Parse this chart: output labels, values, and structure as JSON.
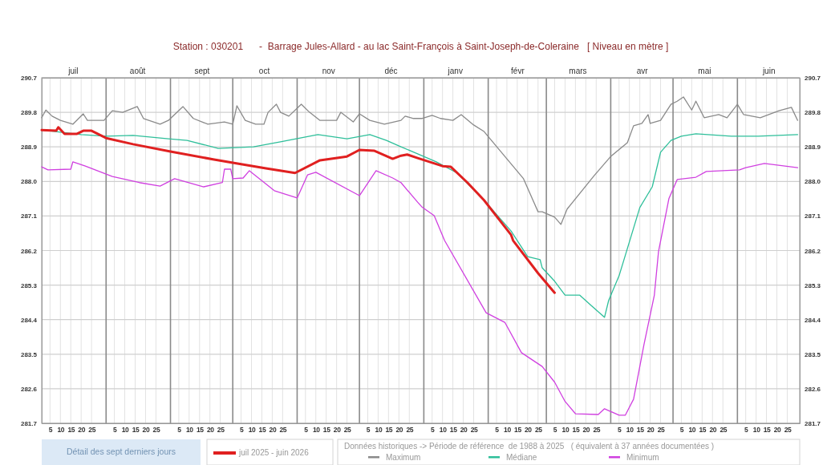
{
  "chart_data": {
    "type": "line",
    "title": "Station : 030201      -  Barrage Jules-Allard - au lac Saint-François à Saint-Joseph-de-Coleraine   [ Niveau en mètre ]",
    "legend_title": "Données historiques -> Période de référence  de 1988 à 2025   ( équivalent à 37 années documentées )",
    "legend": "bottom",
    "grid": true,
    "annotations": [
      "Détail des sept derniers jours"
    ],
    "xlim": [
      "2025-07-01",
      "2026-07-01"
    ],
    "ylim": [
      281.7,
      290.7
    ],
    "y2lim": [
      281.7,
      290.7
    ],
    "x2lim": [
      "2025-07-01",
      "2026-07-01"
    ],
    "yticks": [
      281.7,
      282.6,
      283.5,
      284.4,
      285.3,
      286.2,
      287.1,
      {
        "value": 288,
        "label": "288.0"
      },
      288.9,
      289.8,
      290.7
    ],
    "y2ticks": [
      281.7,
      282.6,
      283.5,
      284.4,
      285.3,
      286.2,
      287.1,
      {
        "value": 288,
        "label": "288.0"
      },
      288.9,
      289.8,
      290.7
    ],
    "xticks": [
      {
        "value": "2025-07-05",
        "label": "5"
      },
      {
        "value": "2025-07-10",
        "label": "10"
      },
      {
        "value": "2025-07-15",
        "label": "15"
      },
      {
        "value": "2025-07-20",
        "label": "20"
      },
      {
        "value": "2025-07-25",
        "label": "25"
      },
      {
        "value": "2025-08-05",
        "label": "5"
      },
      {
        "value": "2025-08-10",
        "label": "10"
      },
      {
        "value": "2025-08-15",
        "label": "15"
      },
      {
        "value": "2025-08-20",
        "label": "20"
      },
      {
        "value": "2025-08-25",
        "label": "25"
      },
      {
        "value": "2025-09-05",
        "label": "5"
      },
      {
        "value": "2025-09-10",
        "label": "10"
      },
      {
        "value": "2025-09-15",
        "label": "15"
      },
      {
        "value": "2025-09-20",
        "label": "20"
      },
      {
        "value": "2025-09-25",
        "label": "25"
      },
      {
        "value": "2025-10-05",
        "label": "5"
      },
      {
        "value": "2025-10-10",
        "label": "10"
      },
      {
        "value": "2025-10-15",
        "label": "15"
      },
      {
        "value": "2025-10-20",
        "label": "20"
      },
      {
        "value": "2025-10-25",
        "label": "25"
      },
      {
        "value": "2025-11-05",
        "label": "5"
      },
      {
        "value": "2025-11-10",
        "label": "10"
      },
      {
        "value": "2025-11-15",
        "label": "15"
      },
      {
        "value": "2025-11-20",
        "label": "20"
      },
      {
        "value": "2025-11-25",
        "label": "25"
      },
      {
        "value": "2025-12-05",
        "label": "5"
      },
      {
        "value": "2025-12-10",
        "label": "10"
      },
      {
        "value": "2025-12-15",
        "label": "15"
      },
      {
        "value": "2025-12-20",
        "label": "20"
      },
      {
        "value": "2025-12-25",
        "label": "25"
      },
      {
        "value": "2026-01-05",
        "label": "5"
      },
      {
        "value": "2026-01-10",
        "label": "10"
      },
      {
        "value": "2026-01-15",
        "label": "15"
      },
      {
        "value": "2026-01-20",
        "label": "20"
      },
      {
        "value": "2026-01-25",
        "label": "25"
      },
      {
        "value": "2026-02-05",
        "label": "5"
      },
      {
        "value": "2026-02-10",
        "label": "10"
      },
      {
        "value": "2026-02-15",
        "label": "15"
      },
      {
        "value": "2026-02-20",
        "label": "20"
      },
      {
        "value": "2026-02-25",
        "label": "25"
      },
      {
        "value": "2026-03-05",
        "label": "5"
      },
      {
        "value": "2026-03-10",
        "label": "10"
      },
      {
        "value": "2026-03-15",
        "label": "15"
      },
      {
        "value": "2026-03-20",
        "label": "20"
      },
      {
        "value": "2026-03-25",
        "label": "25"
      },
      {
        "value": "2026-04-05",
        "label": "5"
      },
      {
        "value": "2026-04-10",
        "label": "10"
      },
      {
        "value": "2026-04-15",
        "label": "15"
      },
      {
        "value": "2026-04-20",
        "label": "20"
      },
      {
        "value": "2026-04-25",
        "label": "25"
      },
      {
        "value": "2026-05-05",
        "label": "5"
      },
      {
        "value": "2026-05-10",
        "label": "10"
      },
      {
        "value": "2026-05-15",
        "label": "15"
      },
      {
        "value": "2026-05-20",
        "label": "20"
      },
      {
        "value": "2026-05-25",
        "label": "25"
      },
      {
        "value": "2026-06-05",
        "label": "5"
      },
      {
        "value": "2026-06-10",
        "label": "10"
      },
      {
        "value": "2026-06-15",
        "label": "15"
      },
      {
        "value": "2026-06-20",
        "label": "20"
      },
      {
        "value": "2026-06-25",
        "label": "25"
      }
    ],
    "x2ticks": [
      {
        "value": "2025-07-16",
        "label": "juil"
      },
      {
        "value": "2025-08-16",
        "label": "août"
      },
      {
        "value": "2025-09-16",
        "label": "sept"
      },
      {
        "value": "2025-10-16",
        "label": "oct"
      },
      {
        "value": "2025-11-16",
        "label": "nov"
      },
      {
        "value": "2025-12-16",
        "label": "déc"
      },
      {
        "value": "2026-01-16",
        "label": "janv"
      },
      {
        "value": "2026-02-15",
        "label": "févr"
      },
      {
        "value": "2026-03-16",
        "label": "mars"
      },
      {
        "value": "2026-04-16",
        "label": "avr"
      },
      {
        "value": "2026-05-16",
        "label": "mai"
      },
      {
        "value": "2026-06-16",
        "label": "juin"
      }
    ],
    "ref_lines": [
      {
        "axis": "x",
        "value": "2025-08-01",
        "color": "#8a8a8a"
      },
      {
        "axis": "x",
        "value": "2025-09-01",
        "color": "#8a8a8a"
      },
      {
        "axis": "x",
        "value": "2025-10-01",
        "color": "#8a8a8a"
      },
      {
        "axis": "x",
        "value": "2025-11-01",
        "color": "#8a8a8a"
      },
      {
        "axis": "x",
        "value": "2025-12-01",
        "color": "#8a8a8a"
      },
      {
        "axis": "x",
        "value": "2026-01-01",
        "color": "#8a8a8a"
      },
      {
        "axis": "x",
        "value": "2026-02-01",
        "color": "#8a8a8a"
      },
      {
        "axis": "x",
        "value": "2026-03-01",
        "color": "#8a8a8a"
      },
      {
        "axis": "x",
        "value": "2026-04-01",
        "color": "#8a8a8a"
      },
      {
        "axis": "x",
        "value": "2026-05-01",
        "color": "#8a8a8a"
      },
      {
        "axis": "x",
        "value": "2026-06-01",
        "color": "#8a8a8a"
      }
    ],
    "series": [
      {
        "name": "juil 2025 - juin 2026",
        "color": "#e02020",
        "x": [
          "2025-07-01",
          "2025-07-08",
          "2025-07-09",
          "2025-07-12",
          "2025-07-18",
          "2025-07-21",
          "2025-07-25",
          "2025-08-01",
          "2025-08-14",
          "2025-09-01",
          "2025-09-22",
          "2025-10-05",
          "2025-10-17",
          "2025-10-31",
          "2025-11-12",
          "2025-11-25",
          "2025-12-01",
          "2025-12-08",
          "2025-12-17",
          "2025-12-21",
          "2025-12-24",
          "2025-12-29",
          "2026-01-10",
          "2026-01-14",
          "2026-01-22",
          "2026-01-30",
          "2026-02-12",
          "2026-02-13",
          "2026-02-25",
          "2026-03-05"
        ],
        "values": [
          289.34,
          289.32,
          289.41,
          289.24,
          289.24,
          289.32,
          289.32,
          289.13,
          288.97,
          288.78,
          288.57,
          288.45,
          288.34,
          288.22,
          288.55,
          288.65,
          288.82,
          288.8,
          288.59,
          288.67,
          288.7,
          288.61,
          288.4,
          288.38,
          287.97,
          287.51,
          286.61,
          286.46,
          285.61,
          285.1
        ]
      },
      {
        "name": "Maximum",
        "color": "#8a8a8a",
        "x": [
          "2025-07-01",
          "2025-07-03",
          "2025-07-06",
          "2025-07-10",
          "2025-07-16",
          "2025-07-21",
          "2025-07-23",
          "2025-07-31",
          "2025-08-04",
          "2025-08-09",
          "2025-08-16",
          "2025-08-19",
          "2025-08-27",
          "2025-08-31",
          "2025-09-07",
          "2025-09-12",
          "2025-09-19",
          "2025-09-27",
          "2025-10-01",
          "2025-10-03",
          "2025-10-07",
          "2025-10-12",
          "2025-10-16",
          "2025-10-18",
          "2025-10-22",
          "2025-10-24",
          "2025-10-28",
          "2025-11-03",
          "2025-11-07",
          "2025-11-12",
          "2025-11-20",
          "2025-11-22",
          "2025-11-28",
          "2025-12-01",
          "2025-12-06",
          "2025-12-13",
          "2025-12-21",
          "2025-12-23",
          "2025-12-27",
          "2025-12-31",
          "2026-01-05",
          "2026-01-09",
          "2026-01-15",
          "2026-01-19",
          "2026-01-25",
          "2026-01-30",
          "2026-02-18",
          "2026-02-25",
          "2026-02-27",
          "2026-03-05",
          "2026-03-08",
          "2026-03-11",
          "2026-03-24",
          "2026-04-01",
          "2026-04-09",
          "2026-04-12",
          "2026-04-16",
          "2026-04-19",
          "2026-04-20",
          "2026-04-25",
          "2026-04-30",
          "2026-05-03",
          "2026-05-06",
          "2026-05-10",
          "2026-05-12",
          "2026-05-16",
          "2026-05-23",
          "2026-05-27",
          "2026-06-01",
          "2026-06-04",
          "2026-06-12",
          "2026-06-21",
          "2026-06-27",
          "2026-06-30"
        ],
        "values": [
          289.66,
          289.86,
          289.7,
          289.59,
          289.49,
          289.76,
          289.59,
          289.59,
          289.84,
          289.8,
          289.95,
          289.64,
          289.49,
          289.59,
          289.95,
          289.64,
          289.49,
          289.55,
          289.49,
          289.97,
          289.59,
          289.49,
          289.49,
          289.8,
          290.01,
          289.8,
          289.7,
          290.01,
          289.8,
          289.59,
          289.59,
          289.8,
          289.55,
          289.76,
          289.59,
          289.49,
          289.59,
          289.7,
          289.64,
          289.64,
          289.72,
          289.64,
          289.59,
          289.74,
          289.47,
          289.3,
          288.07,
          287.21,
          287.21,
          287.07,
          286.88,
          287.28,
          288.15,
          288.65,
          289.01,
          289.45,
          289.51,
          289.74,
          289.51,
          289.59,
          290.01,
          290.09,
          290.2,
          289.86,
          290.09,
          289.66,
          289.74,
          289.66,
          290.01,
          289.74,
          289.66,
          289.84,
          289.93,
          289.59
        ]
      },
      {
        "name": "Médiane",
        "color": "#2ebf9a",
        "x": [
          "2025-07-01",
          "2025-07-20",
          "2025-08-01",
          "2025-08-14",
          "2025-08-31",
          "2025-09-09",
          "2025-09-24",
          "2025-10-11",
          "2025-10-24",
          "2025-11-11",
          "2025-11-25",
          "2025-12-06",
          "2025-12-14",
          "2025-12-21",
          "2025-12-29",
          "2026-01-07",
          "2026-01-17",
          "2026-01-30",
          "2026-02-12",
          "2026-02-20",
          "2026-02-26",
          "2026-02-27",
          "2026-03-05",
          "2026-03-10",
          "2026-03-17",
          "2026-03-23",
          "2026-03-29",
          "2026-03-31",
          "2026-04-05",
          "2026-04-09",
          "2026-04-15",
          "2026-04-21",
          "2026-04-25",
          "2026-04-30",
          "2026-05-05",
          "2026-05-12",
          "2026-05-29",
          "2026-06-11",
          "2026-06-30"
        ],
        "values": [
          289.34,
          289.22,
          289.18,
          289.2,
          289.11,
          289.07,
          288.86,
          288.9,
          289.03,
          289.22,
          289.11,
          289.22,
          289.07,
          288.9,
          288.72,
          288.51,
          288.22,
          287.51,
          286.71,
          286.04,
          285.96,
          285.75,
          285.4,
          285.04,
          285.04,
          284.75,
          284.46,
          284.9,
          285.54,
          286.25,
          287.32,
          287.86,
          288.76,
          289.07,
          289.18,
          289.24,
          289.18,
          289.18,
          289.22
        ]
      },
      {
        "name": "Minimum",
        "color": "#d040e0",
        "x": [
          "2025-07-01",
          "2025-07-04",
          "2025-07-15",
          "2025-07-16",
          "2025-07-22",
          "2025-08-04",
          "2025-08-17",
          "2025-08-27",
          "2025-09-03",
          "2025-09-17",
          "2025-09-26",
          "2025-09-27",
          "2025-09-30",
          "2025-10-01",
          "2025-10-06",
          "2025-10-09",
          "2025-10-21",
          "2025-11-01",
          "2025-11-06",
          "2025-11-10",
          "2025-12-01",
          "2025-12-09",
          "2025-12-17",
          "2025-12-21",
          "2025-12-29",
          "2025-12-31",
          "2026-01-06",
          "2026-01-11",
          "2026-01-31",
          "2026-02-09",
          "2026-02-17",
          "2026-02-27",
          "2026-03-05",
          "2026-03-10",
          "2026-03-15",
          "2026-03-26",
          "2026-03-29",
          "2026-04-05",
          "2026-04-08",
          "2026-04-12",
          "2026-04-17",
          "2026-04-22",
          "2026-04-24",
          "2026-04-29",
          "2026-05-03",
          "2026-05-12",
          "2026-05-17",
          "2026-06-02",
          "2026-06-05",
          "2026-06-14",
          "2026-06-30"
        ],
        "values": [
          288.38,
          288.3,
          288.32,
          288.51,
          288.4,
          288.13,
          287.97,
          287.88,
          288.07,
          287.86,
          287.97,
          288.32,
          288.32,
          288.07,
          288.09,
          288.28,
          287.76,
          287.57,
          288.17,
          288.24,
          287.63,
          288.28,
          288.09,
          287.97,
          287.46,
          287.34,
          287.11,
          286.46,
          284.58,
          284.33,
          283.54,
          283.18,
          282.77,
          282.27,
          281.95,
          281.93,
          282.08,
          281.91,
          281.91,
          282.33,
          283.75,
          285.04,
          286.17,
          287.55,
          288.05,
          288.11,
          288.26,
          288.3,
          288.36,
          288.47,
          288.36
        ]
      }
    ]
  }
}
